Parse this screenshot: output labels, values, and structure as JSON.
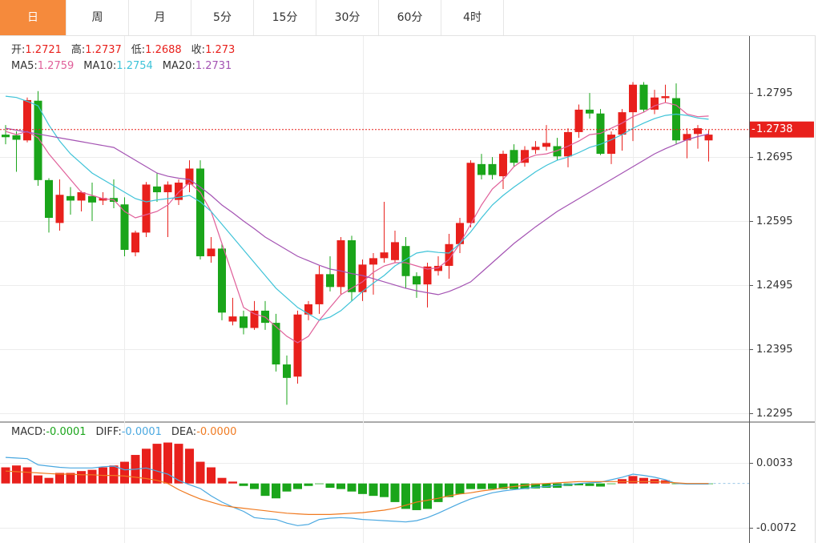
{
  "tabs": [
    "日",
    "周",
    "月",
    "5分",
    "15分",
    "30分",
    "60分",
    "4时"
  ],
  "active_tab": 0,
  "chart_data": [
    {
      "type": "candlestick",
      "ohlc_header": [
        {
          "label": "开:",
          "value": 1.2721
        },
        {
          "label": "高:",
          "value": 1.2737
        },
        {
          "label": "低:",
          "value": 1.2688
        },
        {
          "label": "收:",
          "value": 1.273
        }
      ],
      "ohlc_header_color": "#e8201c",
      "ma_header": [
        {
          "label": "MA5:",
          "value": 1.2759
        },
        {
          "label": "MA10:",
          "value": 1.2754
        },
        {
          "label": "MA20:",
          "value": 1.2731
        }
      ],
      "open": [
        1.273,
        1.2729,
        1.2721,
        1.2783,
        1.2659,
        1.2592,
        1.2634,
        1.2627,
        1.2634,
        1.2627,
        1.2631,
        1.2621,
        1.2546,
        1.2577,
        1.2649,
        1.264,
        1.2628,
        1.2652,
        1.2677,
        1.254,
        1.2552,
        1.2438,
        1.2446,
        1.2428,
        1.2455,
        1.2436,
        1.2371,
        1.2352,
        1.2449,
        1.2465,
        1.2512,
        1.2492,
        1.2565,
        1.2484,
        1.2527,
        1.2537,
        1.2534,
        1.2556,
        1.2509,
        1.2496,
        1.2517,
        1.2525,
        1.2559,
        1.2592,
        1.2684,
        1.2684,
        1.2665,
        1.2706,
        1.2686,
        1.2706,
        1.2711,
        1.2712,
        1.2696,
        1.2734,
        1.2769,
        1.2763,
        1.27,
        1.273,
        1.2765,
        1.2808,
        1.2769,
        1.2787,
        1.2787,
        1.2721,
        1.2731,
        1.2721
      ],
      "high": [
        1.2745,
        1.2735,
        1.2788,
        1.2798,
        1.2662,
        1.266,
        1.2648,
        1.2642,
        1.2655,
        1.264,
        1.266,
        1.2632,
        1.258,
        1.2656,
        1.267,
        1.2657,
        1.266,
        1.269,
        1.269,
        1.257,
        1.256,
        1.2475,
        1.2455,
        1.247,
        1.247,
        1.245,
        1.2385,
        1.2455,
        1.247,
        1.2525,
        1.254,
        1.257,
        1.2572,
        1.2535,
        1.2545,
        1.2625,
        1.258,
        1.257,
        1.2515,
        1.253,
        1.254,
        1.2575,
        1.26,
        1.269,
        1.27,
        1.2695,
        1.2705,
        1.2715,
        1.2712,
        1.272,
        1.2745,
        1.2725,
        1.274,
        1.2777,
        1.2795,
        1.277,
        1.2735,
        1.277,
        1.2812,
        1.2812,
        1.28,
        1.2808,
        1.281,
        1.274,
        1.2745,
        1.2737
      ],
      "low": [
        1.2715,
        1.2672,
        1.2718,
        1.265,
        1.2577,
        1.258,
        1.2605,
        1.261,
        1.2595,
        1.262,
        1.2615,
        1.254,
        1.254,
        1.257,
        1.2625,
        1.257,
        1.262,
        1.264,
        1.2535,
        1.253,
        1.244,
        1.2432,
        1.2418,
        1.2425,
        1.2425,
        1.236,
        1.2308,
        1.2341,
        1.244,
        1.245,
        1.2485,
        1.248,
        1.247,
        1.247,
        1.248,
        1.253,
        1.253,
        1.249,
        1.2475,
        1.246,
        1.251,
        1.2505,
        1.2545,
        1.2585,
        1.266,
        1.266,
        1.2645,
        1.268,
        1.268,
        1.27,
        1.2705,
        1.269,
        1.2679,
        1.2725,
        1.2755,
        1.2698,
        1.2684,
        1.2705,
        1.272,
        1.2765,
        1.2762,
        1.278,
        1.2715,
        1.2693,
        1.2708,
        1.2688
      ],
      "close": [
        1.2726,
        1.2722,
        1.2784,
        1.2659,
        1.26,
        1.2636,
        1.2627,
        1.264,
        1.2624,
        1.2631,
        1.2625,
        1.255,
        1.2577,
        1.2652,
        1.264,
        1.2652,
        1.2655,
        1.2677,
        1.254,
        1.2552,
        1.2452,
        1.2446,
        1.2428,
        1.2455,
        1.2436,
        1.2371,
        1.235,
        1.2449,
        1.2465,
        1.2512,
        1.2492,
        1.2565,
        1.2484,
        1.2527,
        1.2537,
        1.2546,
        1.2562,
        1.2509,
        1.2496,
        1.2524,
        1.2525,
        1.2559,
        1.2592,
        1.2686,
        1.2667,
        1.2667,
        1.27,
        1.2686,
        1.2706,
        1.2711,
        1.2717,
        1.2696,
        1.2734,
        1.2769,
        1.2763,
        1.27,
        1.273,
        1.2765,
        1.2808,
        1.2769,
        1.2788,
        1.279,
        1.2721,
        1.2731,
        1.274,
        1.273
      ],
      "up_color": "#e8201c",
      "down_color": "#1aa51a",
      "ma": [
        {
          "color": "#e0609a",
          "values": [
            1.2735,
            1.273,
            1.2735,
            1.2725,
            1.27,
            1.268,
            1.266,
            1.264,
            1.2635,
            1.263,
            1.2628,
            1.261,
            1.26,
            1.2605,
            1.261,
            1.262,
            1.264,
            1.2655,
            1.264,
            1.261,
            1.256,
            1.251,
            1.246,
            1.245,
            1.2445,
            1.243,
            1.2415,
            1.2405,
            1.2415,
            1.244,
            1.246,
            1.248,
            1.249,
            1.25,
            1.2515,
            1.2525,
            1.253,
            1.253,
            1.2525,
            1.252,
            1.2522,
            1.2535,
            1.256,
            1.259,
            1.262,
            1.2645,
            1.266,
            1.268,
            1.2692,
            1.2698,
            1.27,
            1.2705,
            1.2712,
            1.272,
            1.273,
            1.2732,
            1.274,
            1.2748,
            1.2758,
            1.2765,
            1.2775,
            1.278,
            1.2776,
            1.2762,
            1.2758,
            1.2759
          ]
        },
        {
          "color": "#3ec3d8",
          "values": [
            1.279,
            1.2788,
            1.2782,
            1.2775,
            1.2745,
            1.272,
            1.27,
            1.2685,
            1.267,
            1.266,
            1.265,
            1.264,
            1.263,
            1.2625,
            1.2628,
            1.263,
            1.2632,
            1.2635,
            1.2625,
            1.261,
            1.259,
            1.257,
            1.255,
            1.253,
            1.251,
            1.249,
            1.2475,
            1.246,
            1.245,
            1.244,
            1.2445,
            1.2455,
            1.247,
            1.2485,
            1.2498,
            1.251,
            1.2525,
            1.2535,
            1.2545,
            1.2548,
            1.2546,
            1.2545,
            1.256,
            1.2578,
            1.26,
            1.262,
            1.2635,
            1.2648,
            1.266,
            1.2672,
            1.2682,
            1.269,
            1.2695,
            1.2702,
            1.271,
            1.2715,
            1.2722,
            1.273,
            1.274,
            1.2748,
            1.2755,
            1.276,
            1.2762,
            1.276,
            1.2756,
            1.2754
          ]
        },
        {
          "color": "#a453b3",
          "values": [
            1.274,
            1.2737,
            1.2734,
            1.2731,
            1.2728,
            1.2725,
            1.2722,
            1.2719,
            1.2716,
            1.2713,
            1.271,
            1.27,
            1.269,
            1.268,
            1.267,
            1.2665,
            1.2662,
            1.266,
            1.2648,
            1.2635,
            1.262,
            1.2608,
            1.2595,
            1.2583,
            1.257,
            1.256,
            1.255,
            1.254,
            1.2533,
            1.2526,
            1.252,
            1.2517,
            1.2513,
            1.251,
            1.2505,
            1.25,
            1.2495,
            1.249,
            1.2486,
            1.2483,
            1.248,
            1.2485,
            1.2492,
            1.25,
            1.2515,
            1.253,
            1.2545,
            1.256,
            1.2573,
            1.2586,
            1.2598,
            1.261,
            1.262,
            1.263,
            1.264,
            1.265,
            1.266,
            1.267,
            1.268,
            1.269,
            1.27,
            1.2708,
            1.2715,
            1.2722,
            1.2727,
            1.2731
          ]
        }
      ],
      "ylim": [
        1.2281,
        1.2884
      ],
      "yticks": [
        1.2795,
        1.2695,
        1.2595,
        1.2495,
        1.2395,
        1.2295
      ],
      "grid": true,
      "last_price": 1.2738,
      "last_price_color": "#e8201c"
    },
    {
      "type": "macd",
      "header": [
        {
          "label": "MACD:",
          "value": -0.0001,
          "color": "#1aa51a"
        },
        {
          "label": "DIFF:",
          "value": -0.0001,
          "color": "#4aa8e0"
        },
        {
          "label": "DEA:",
          "value": "-0.0000",
          "color": "#f07a20"
        }
      ],
      "hist": [
        0.0026,
        0.0029,
        0.0026,
        0.0013,
        0.0009,
        0.0017,
        0.0017,
        0.002,
        0.0022,
        0.0026,
        0.0029,
        0.0035,
        0.0046,
        0.0056,
        0.0064,
        0.0066,
        0.0064,
        0.0056,
        0.0035,
        0.0026,
        0.0009,
        0.0003,
        -0.0004,
        -0.0009,
        -0.002,
        -0.0024,
        -0.0013,
        -0.0009,
        -0.0004,
        -0.0001,
        -0.0007,
        -0.0009,
        -0.0013,
        -0.0017,
        -0.002,
        -0.0022,
        -0.003,
        -0.0041,
        -0.0043,
        -0.0041,
        -0.003,
        -0.0022,
        -0.0017,
        -0.0009,
        -0.0009,
        -0.0009,
        -0.0009,
        -0.0009,
        -0.0009,
        -0.0008,
        -0.0007,
        -0.0007,
        -0.0004,
        -0.0003,
        -0.0004,
        -0.0005,
        -0.0001,
        0.0007,
        0.0012,
        0.0009,
        0.0007,
        0.0005,
        -0.0001,
        -0.0001,
        0.0,
        -0.0001
      ],
      "up_color": "#e8201c",
      "down_color": "#1aa51a",
      "lines": [
        {
          "color": "#4aa8e0",
          "values": [
            0.0042,
            0.0041,
            0.004,
            0.003,
            0.0028,
            0.0026,
            0.0025,
            0.0025,
            0.0025,
            0.0027,
            0.0028,
            0.0022,
            0.0023,
            0.0025,
            0.002,
            0.0015,
            0.0005,
            -0.0002,
            -0.0008,
            -0.002,
            -0.003,
            -0.0038,
            -0.0045,
            -0.0055,
            -0.0057,
            -0.0058,
            -0.0064,
            -0.0068,
            -0.0066,
            -0.0058,
            -0.0056,
            -0.0055,
            -0.0056,
            -0.0058,
            -0.0059,
            -0.006,
            -0.0061,
            -0.0062,
            -0.006,
            -0.0055,
            -0.0048,
            -0.004,
            -0.0032,
            -0.0025,
            -0.002,
            -0.0015,
            -0.0012,
            -0.001,
            -0.0008,
            -0.0006,
            -0.0005,
            -0.0003,
            -0.0002,
            0.0,
            0.0001,
            0.0002,
            0.0006,
            0.001,
            0.0015,
            0.0013,
            0.001,
            0.0006,
            0.0,
            -0.0001,
            -0.0001,
            -0.0001
          ]
        },
        {
          "color": "#f07a20",
          "values": [
            0.002,
            0.0019,
            0.0018,
            0.0017,
            0.0016,
            0.0015,
            0.0015,
            0.0014,
            0.0014,
            0.0013,
            0.0013,
            0.0012,
            0.001,
            0.0008,
            0.0005,
            0.0,
            -0.001,
            -0.0018,
            -0.0025,
            -0.003,
            -0.0035,
            -0.0038,
            -0.004,
            -0.0042,
            -0.0044,
            -0.0046,
            -0.0048,
            -0.0049,
            -0.005,
            -0.005,
            -0.005,
            -0.0049,
            -0.0048,
            -0.0047,
            -0.0045,
            -0.0043,
            -0.004,
            -0.0035,
            -0.003,
            -0.0027,
            -0.0024,
            -0.002,
            -0.0017,
            -0.0015,
            -0.0012,
            -0.001,
            -0.0007,
            -0.0005,
            -0.0003,
            -0.0001,
            0.0,
            0.0001,
            0.0002,
            0.0003,
            0.0003,
            0.0003,
            0.0003,
            0.0003,
            0.0003,
            0.0003,
            0.0003,
            0.0002,
            0.0001,
            0.0,
            0.0,
            0.0
          ]
        }
      ],
      "ylim": [
        -0.0096,
        0.0099
      ],
      "yticks": [
        0.0033,
        -0.0072
      ],
      "grid": true
    }
  ]
}
